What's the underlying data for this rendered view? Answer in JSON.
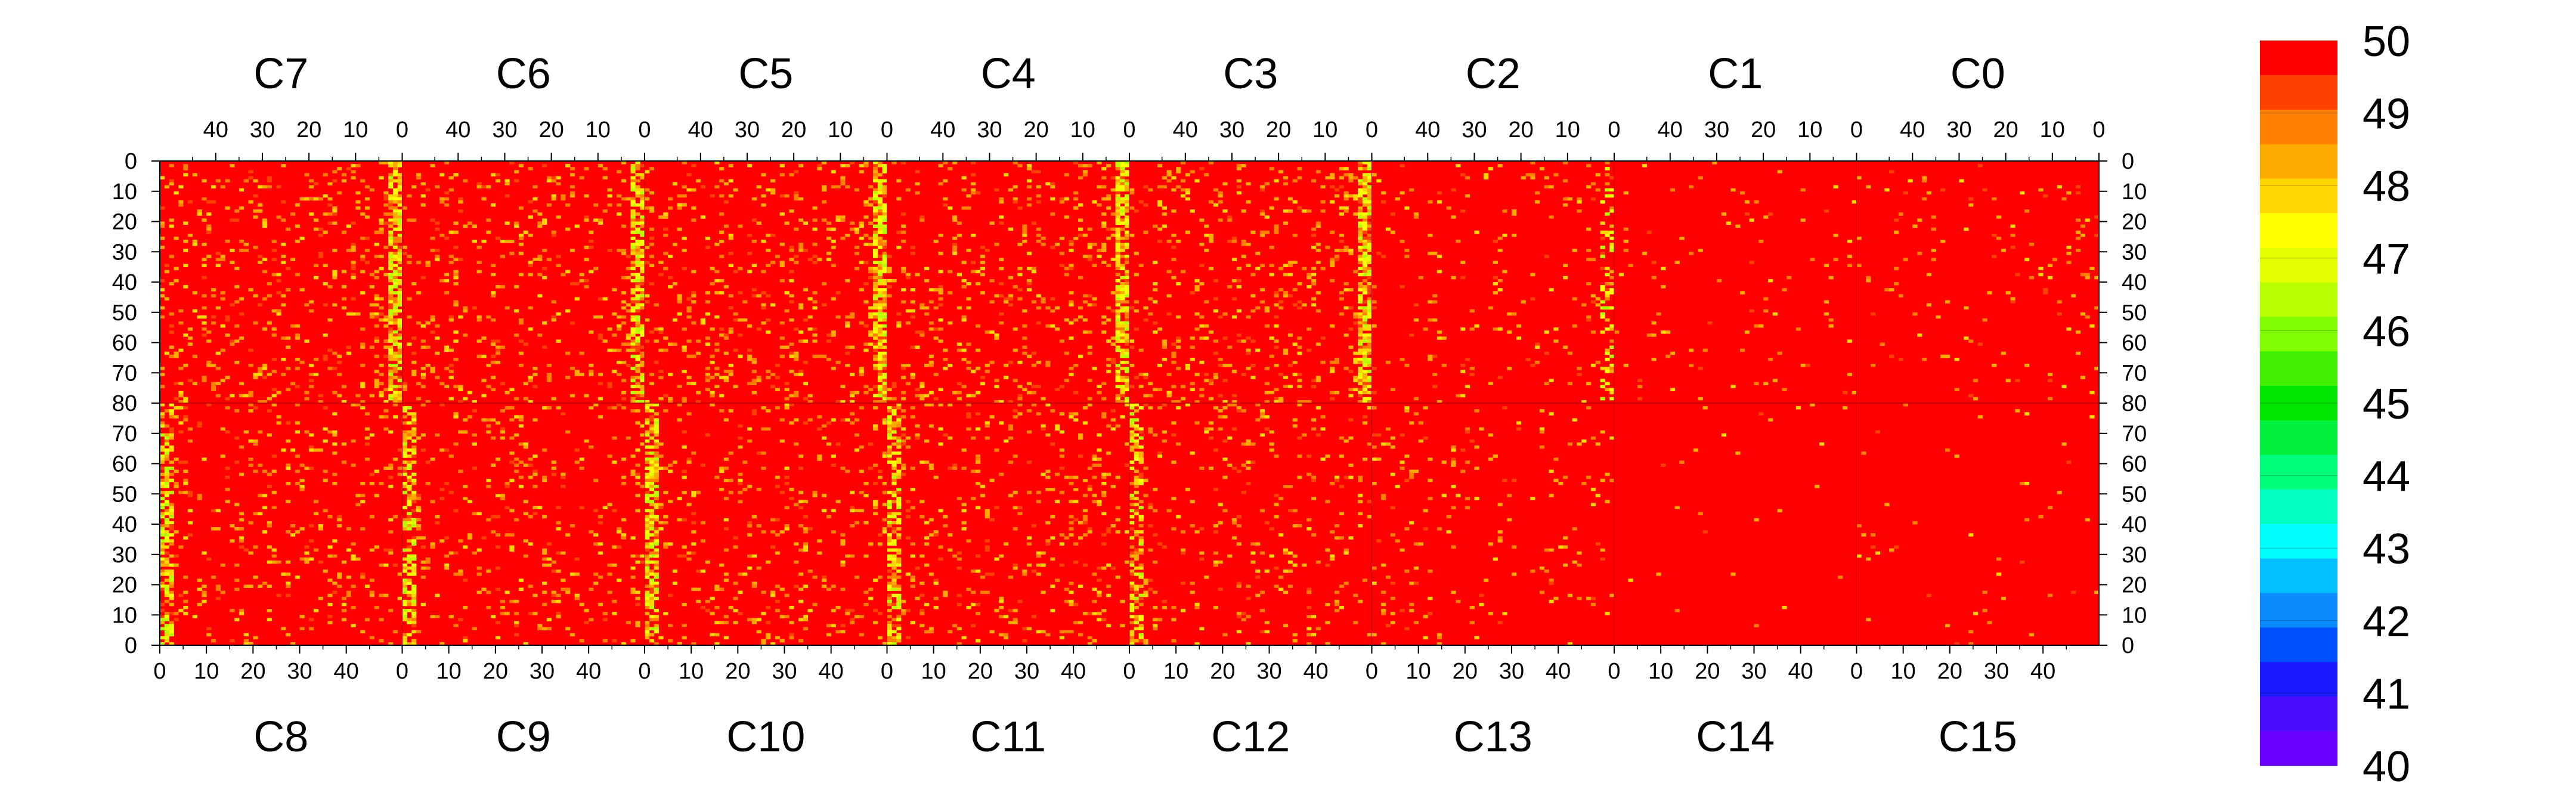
{
  "chart_data": {
    "type": "heatmap",
    "title": "",
    "color_scale": {
      "min": 40,
      "max": 50,
      "tick_labels": [
        "50",
        "49",
        "48",
        "47",
        "46",
        "45",
        "44",
        "43",
        "42",
        "41",
        "40"
      ],
      "bands": [
        "#6a00ff",
        "#4b0dff",
        "#1919ff",
        "#0050ff",
        "#0a8cff",
        "#00c0ff",
        "#00ffff",
        "#00ffc0",
        "#00ff7a",
        "#00f23c",
        "#00e600",
        "#40f000",
        "#80ff00",
        "#b8ff00",
        "#e6ff00",
        "#ffff00",
        "#ffd700",
        "#ffaa00",
        "#ff7f00",
        "#ff4000",
        "#ff0000"
      ]
    },
    "top_chips": [
      "C7",
      "C6",
      "C5",
      "C4",
      "C3",
      "C2",
      "C1",
      "C0"
    ],
    "bottom_chips": [
      "C8",
      "C9",
      "C10",
      "C11",
      "C12",
      "C13",
      "C14",
      "C15"
    ],
    "top_x_ticks": [
      "40",
      "30",
      "20",
      "10",
      "0"
    ],
    "bottom_x_ticks": [
      "0",
      "10",
      "20",
      "30",
      "40"
    ],
    "top_half_y_ticks": [
      "0",
      "10",
      "20",
      "30",
      "40",
      "50",
      "60",
      "70",
      "80"
    ],
    "bottom_half_y_ticks": [
      "70",
      "60",
      "50",
      "40",
      "30",
      "20",
      "10",
      "0"
    ],
    "columns_per_chip": 52,
    "rows_per_half": 80,
    "baseline_value": 50,
    "chip_occupancy_levels": {
      "C7": 0.3,
      "C6": 0.25,
      "C5": 0.3,
      "C4": 0.3,
      "C3": 0.3,
      "C2": 0.12,
      "C1": 0.05,
      "C0": 0.08,
      "C8": 0.22,
      "C9": 0.22,
      "C10": 0.25,
      "C11": 0.25,
      "C12": 0.2,
      "C13": 0.1,
      "C14": 0.02,
      "C15": 0.03
    }
  }
}
